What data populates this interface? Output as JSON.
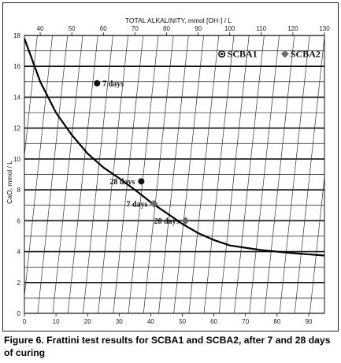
{
  "chart_data": {
    "type": "scatter",
    "title": "",
    "top_axis": {
      "label": "TOTAL ALKALINITY, mmol [OH-] / L",
      "lim": [
        35,
        130
      ],
      "ticks": [
        40,
        50,
        60,
        70,
        80,
        90,
        100,
        110,
        120,
        130
      ]
    },
    "x_axis": {
      "label": "",
      "lim": [
        0,
        95
      ],
      "ticks": [
        0,
        10,
        20,
        30,
        40,
        50,
        60,
        70,
        80,
        90
      ]
    },
    "y_axis": {
      "label": "CaO, mmol / L",
      "lim": [
        0,
        18
      ],
      "ticks": [
        0,
        2,
        4,
        6,
        8,
        10,
        12,
        14,
        16,
        18
      ]
    },
    "grid": true,
    "solubility_curve": [
      {
        "alkalinity": 35,
        "cao": 17.8
      },
      {
        "alkalinity": 40,
        "cao": 15.0
      },
      {
        "alkalinity": 45,
        "cao": 13.0
      },
      {
        "alkalinity": 50,
        "cao": 11.55
      },
      {
        "alkalinity": 55,
        "cao": 10.35
      },
      {
        "alkalinity": 60,
        "cao": 9.45
      },
      {
        "alkalinity": 65,
        "cao": 8.75
      },
      {
        "alkalinity": 70,
        "cao": 8.0
      },
      {
        "alkalinity": 75,
        "cao": 7.2
      },
      {
        "alkalinity": 80,
        "cao": 6.5
      },
      {
        "alkalinity": 85,
        "cao": 5.8
      },
      {
        "alkalinity": 90,
        "cao": 5.2
      },
      {
        "alkalinity": 95,
        "cao": 4.75
      },
      {
        "alkalinity": 100,
        "cao": 4.4
      },
      {
        "alkalinity": 110,
        "cao": 4.1
      },
      {
        "alkalinity": 120,
        "cao": 3.9
      },
      {
        "alkalinity": 130,
        "cao": 3.75
      }
    ],
    "series": [
      {
        "name": "SCBA1",
        "marker": "circle",
        "color": "#111111",
        "points": [
          {
            "label": "7 days",
            "alkalinity": 58,
            "cao": 14.9
          },
          {
            "label": "28 days",
            "alkalinity": 72,
            "cao": 8.55
          }
        ]
      },
      {
        "name": "SCBA2",
        "marker": "diamond",
        "color": "#6b6b6b",
        "points": [
          {
            "label": "7 days",
            "alkalinity": 76,
            "cao": 7.1
          },
          {
            "label": "28 days",
            "alkalinity": 86,
            "cao": 6.0
          }
        ]
      }
    ],
    "legend": {
      "placement": "top-right"
    }
  },
  "caption": "Figure 6. Frattini test results for SCBA1 and SCBA2, after 7 and 28 days of curing"
}
